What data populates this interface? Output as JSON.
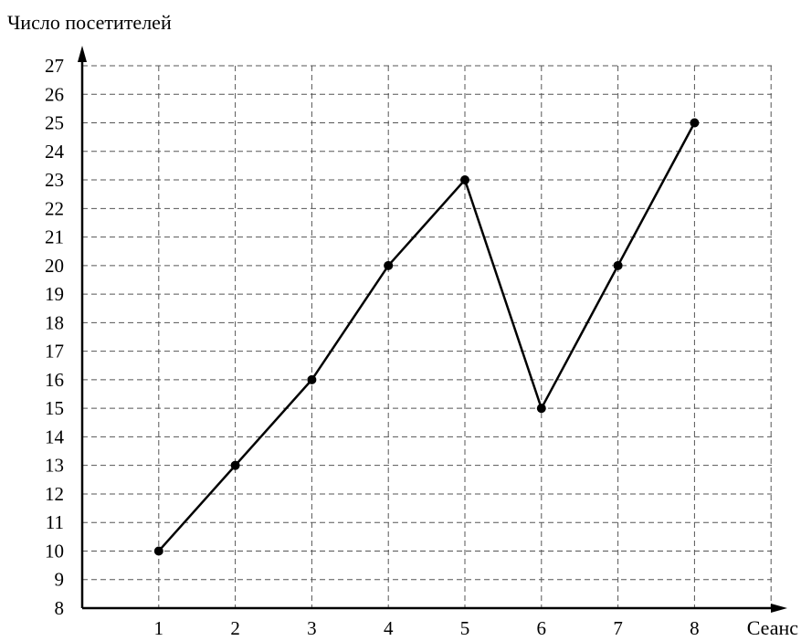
{
  "chart_data": {
    "type": "line",
    "title": "",
    "xlabel": "Сеанс",
    "ylabel": "Число посетителей",
    "categories": [
      "1",
      "2",
      "3",
      "4",
      "5",
      "6",
      "7",
      "8"
    ],
    "x": [
      1,
      2,
      3,
      4,
      5,
      6,
      7,
      8
    ],
    "series": [
      {
        "values": [
          10,
          13,
          16,
          20,
          23,
          15,
          20,
          25
        ]
      }
    ],
    "y_ticks": [
      "8",
      "9",
      "10",
      "11",
      "12",
      "13",
      "14",
      "15",
      "16",
      "17",
      "18",
      "19",
      "20",
      "21",
      "22",
      "23",
      "24",
      "25",
      "26",
      "27"
    ],
    "xlim": [
      0,
      9
    ],
    "ylim": [
      8,
      27
    ],
    "grid": true,
    "line_color": "#000000",
    "grid_color": "#555555"
  }
}
